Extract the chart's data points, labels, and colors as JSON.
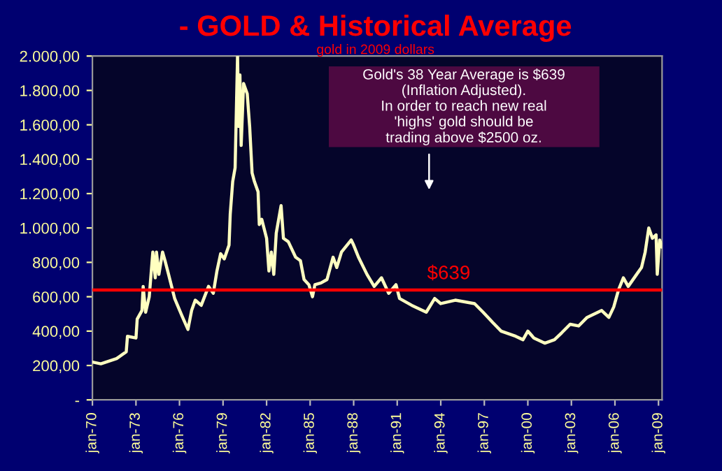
{
  "chart_data": {
    "type": "line",
    "title": "- GOLD & Historical Average",
    "subtitle": "gold in 2009 dollars",
    "annotations": [
      "Gold's 38 Year Average is $639\n(Inflation Adjusted).\nIn order to reach new real\n'highs' gold should be\ntrading above $2500 oz."
    ],
    "series": [
      {
        "color": "#ffffc0",
        "x": [
          "1970-01",
          "1970-08",
          "1971-09",
          "1972-05",
          "1972-06",
          "1973-01",
          "1973-02",
          "1973-06",
          "1973-07",
          "1973-09",
          "1973-12",
          "1974-03",
          "1974-05",
          "1974-06",
          "1974-08",
          "1974-11",
          "1975-01",
          "1975-04",
          "1975-09",
          "1976-03",
          "1976-08",
          "1976-11",
          "1977-02",
          "1977-07",
          "1978-01",
          "1978-05",
          "1978-08",
          "1978-11",
          "1979-02",
          "1979-06",
          "1979-07",
          "1979-09",
          "1979-11",
          "1980-01",
          "1980-02",
          "1980-03",
          "1980-04",
          "1980-06",
          "1980-09",
          "1980-11",
          "1981-01",
          "1981-03",
          "1981-06",
          "1981-07",
          "1981-09",
          "1982-01",
          "1982-03",
          "1982-05",
          "1982-07",
          "1982-09",
          "1983-01",
          "1983-03",
          "1983-07",
          "1984-01",
          "1984-05",
          "1984-08",
          "1984-12",
          "1985-03",
          "1985-05",
          "1985-10",
          "1986-03",
          "1986-08",
          "1986-11",
          "1987-03",
          "1987-11",
          "1988-01",
          "1988-05",
          "1988-12",
          "1989-06",
          "1989-12",
          "1990-06",
          "1990-12",
          "1991-03",
          "1992-01",
          "1993-01",
          "1993-08",
          "1994-01",
          "1995-01",
          "1996-05",
          "1996-12",
          "1997-08",
          "1998-03",
          "1999-03",
          "1999-09",
          "2000-01",
          "2000-06",
          "2001-03",
          "2001-11",
          "2002-05",
          "2002-12",
          "2003-07",
          "2004-02",
          "2004-11",
          "2005-02",
          "2005-08",
          "2005-12",
          "2006-04",
          "2006-08",
          "2006-12",
          "2007-07",
          "2007-11",
          "2008-02",
          "2008-05",
          "2008-08",
          "2008-11",
          "2008-12",
          "2009-02",
          "2009-04"
        ],
        "values": [
          220,
          210,
          240,
          280,
          370,
          360,
          470,
          520,
          660,
          510,
          600,
          860,
          710,
          860,
          730,
          860,
          810,
          730,
          590,
          490,
          410,
          520,
          580,
          550,
          660,
          620,
          750,
          850,
          820,
          900,
          1080,
          1270,
          1350,
          2000,
          1590,
          1890,
          1480,
          1840,
          1780,
          1590,
          1320,
          1270,
          1210,
          1020,
          1050,
          940,
          750,
          860,
          730,
          970,
          1130,
          940,
          920,
          830,
          810,
          700,
          670,
          600,
          670,
          680,
          700,
          830,
          770,
          860,
          930,
          900,
          830,
          730,
          660,
          710,
          620,
          670,
          590,
          550,
          510,
          590,
          560,
          580,
          560,
          510,
          450,
          400,
          370,
          350,
          400,
          360,
          330,
          350,
          390,
          440,
          430,
          480,
          510,
          520,
          480,
          540,
          640,
          710,
          660,
          730,
          770,
          860,
          1000,
          940,
          960,
          730,
          930,
          890
        ]
      }
    ],
    "ref_lines": [
      {
        "axis": "y",
        "value": 639,
        "label": "$639",
        "color": "#ff0000"
      }
    ],
    "xlim": [
      "1970-01",
      "2009-04"
    ],
    "xticks": [
      {
        "value": "1970-01",
        "label": "jan-70"
      },
      {
        "value": "1973-01",
        "label": "jan-73"
      },
      {
        "value": "1976-01",
        "label": "jan-76"
      },
      {
        "value": "1979-01",
        "label": "jan-79"
      },
      {
        "value": "1982-01",
        "label": "jan-82"
      },
      {
        "value": "1985-01",
        "label": "jan-85"
      },
      {
        "value": "1988-01",
        "label": "jan-88"
      },
      {
        "value": "1991-01",
        "label": "jan-91"
      },
      {
        "value": "1994-01",
        "label": "jan-94"
      },
      {
        "value": "1997-01",
        "label": "jan-97"
      },
      {
        "value": "2000-01",
        "label": "jan-00"
      },
      {
        "value": "2003-01",
        "label": "jan-03"
      },
      {
        "value": "2006-01",
        "label": "jan-06"
      },
      {
        "value": "2009-01",
        "label": "jan-09"
      }
    ],
    "ylim": [
      0,
      2000
    ],
    "yticks": [
      {
        "value": 0,
        "label": "-"
      },
      {
        "value": 200,
        "label": "200,00"
      },
      {
        "value": 400,
        "label": "400,00"
      },
      {
        "value": 600,
        "label": "600,00"
      },
      {
        "value": 800,
        "label": "800,00"
      },
      {
        "value": 1000,
        "label": "1.000,00"
      },
      {
        "value": 1200,
        "label": "1.200,00"
      },
      {
        "value": 1400,
        "label": "1.400,00"
      },
      {
        "value": 1600,
        "label": "1.600,00"
      },
      {
        "value": 1800,
        "label": "1.800,00"
      },
      {
        "value": 2000,
        "label": "2.000,00"
      }
    ],
    "grid": false,
    "marker": "none",
    "line_style": "solid"
  }
}
